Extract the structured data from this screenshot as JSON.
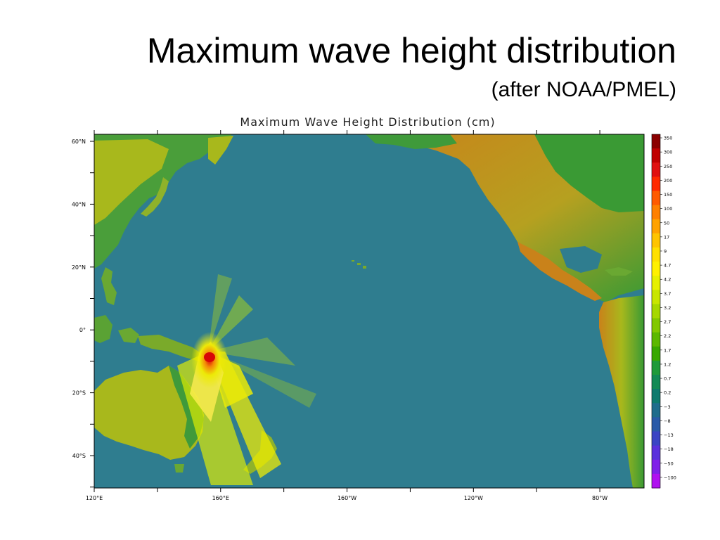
{
  "slide": {
    "title": "Maximum wave height distribution",
    "subtitle": "(after NOAA/PMEL)"
  },
  "map": {
    "title": "Maximum Wave Height Distribution (cm)",
    "lon_labels": [
      "120°E",
      "160°E",
      "160°W",
      "120°W",
      "80°W"
    ],
    "lat_labels": [
      "60°N",
      "40°N",
      "20°N",
      "0°",
      "20°S",
      "40°S"
    ],
    "colors": {
      "ocean": "#2f7d8f",
      "land_low": "#2f9a3a",
      "land_mid": "#a8b81c",
      "land_high": "#c9821a",
      "wave_yellow": "#f5f000",
      "wave_orange": "#ff9800",
      "wave_red": "#e00000"
    },
    "colorbar": {
      "labels": [
        "350",
        "300",
        "250",
        "200",
        "150",
        "100",
        "50",
        "17",
        "9",
        "4.7",
        "4.2",
        "3.7",
        "3.2",
        "2.7",
        "2.2",
        "1.7",
        "1.2",
        "0.7",
        "0.2",
        "−3",
        "−8",
        "−13",
        "−18",
        "−50",
        "−100"
      ],
      "colors": [
        "#8b0000",
        "#c00000",
        "#e01010",
        "#ff2a00",
        "#ff5a00",
        "#ff8000",
        "#ffa200",
        "#ffc400",
        "#ffe000",
        "#fff000",
        "#e6f000",
        "#c8e600",
        "#a6d800",
        "#82c800",
        "#5cb800",
        "#38a800",
        "#1f9a3a",
        "#138a55",
        "#0e7a6e",
        "#1f6c8c",
        "#2a5aa8",
        "#3a44c4",
        "#5a30dc",
        "#8020e8",
        "#b010f0"
      ]
    }
  }
}
